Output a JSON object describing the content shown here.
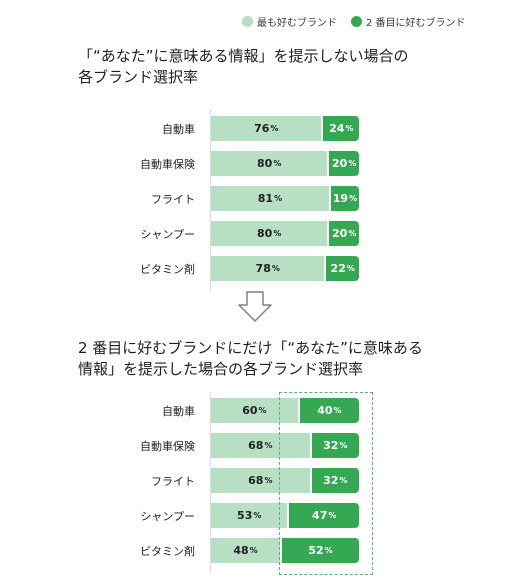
{
  "legend": {
    "light_label": "最も好むブランド",
    "dark_label": "2 番目に好むブランド",
    "light_color": "#b7dfc4",
    "dark_color": "#34a853"
  },
  "chart1_title_line1": "「“あなた”に意味ある情報」を提示しない場合の",
  "chart1_title_line2": "各ブランド選択率",
  "chart2_title_line1": "2 番目に好むブランドにだけ「“あなた”に意味ある",
  "chart2_title_line2": "情報」を提示した場合の各ブランド選択率",
  "arrow_icon": "down-arrow-icon",
  "chart_data": [
    {
      "type": "bar",
      "orientation": "horizontal-stacked",
      "title": "「“あなた”に意味ある情報」を提示しない場合の各ブランド選択率",
      "categories": [
        "自動車",
        "自動車保険",
        "フライト",
        "シャンプー",
        "ビタミン剤"
      ],
      "unit": "%",
      "xlim": [
        0,
        100
      ],
      "series": [
        {
          "name": "最も好むブランド",
          "values": [
            76,
            80,
            81,
            80,
            78
          ],
          "color": "#b7dfc4"
        },
        {
          "name": "2 番目に好むブランド",
          "values": [
            24,
            20,
            19,
            20,
            22
          ],
          "color": "#34a853"
        }
      ]
    },
    {
      "type": "bar",
      "orientation": "horizontal-stacked",
      "title": "2 番目に好むブランドにだけ「“あなた”に意味ある情報」を提示した場合の各ブランド選択率",
      "categories": [
        "自動車",
        "自動車保険",
        "フライト",
        "シャンプー",
        "ビタミン剤"
      ],
      "unit": "%",
      "xlim": [
        0,
        100
      ],
      "series": [
        {
          "name": "最も好むブランド",
          "values": [
            60,
            68,
            68,
            53,
            48
          ],
          "color": "#b7dfc4"
        },
        {
          "name": "2 番目に好むブランド",
          "values": [
            40,
            32,
            32,
            47,
            52
          ],
          "color": "#34a853"
        }
      ]
    }
  ]
}
